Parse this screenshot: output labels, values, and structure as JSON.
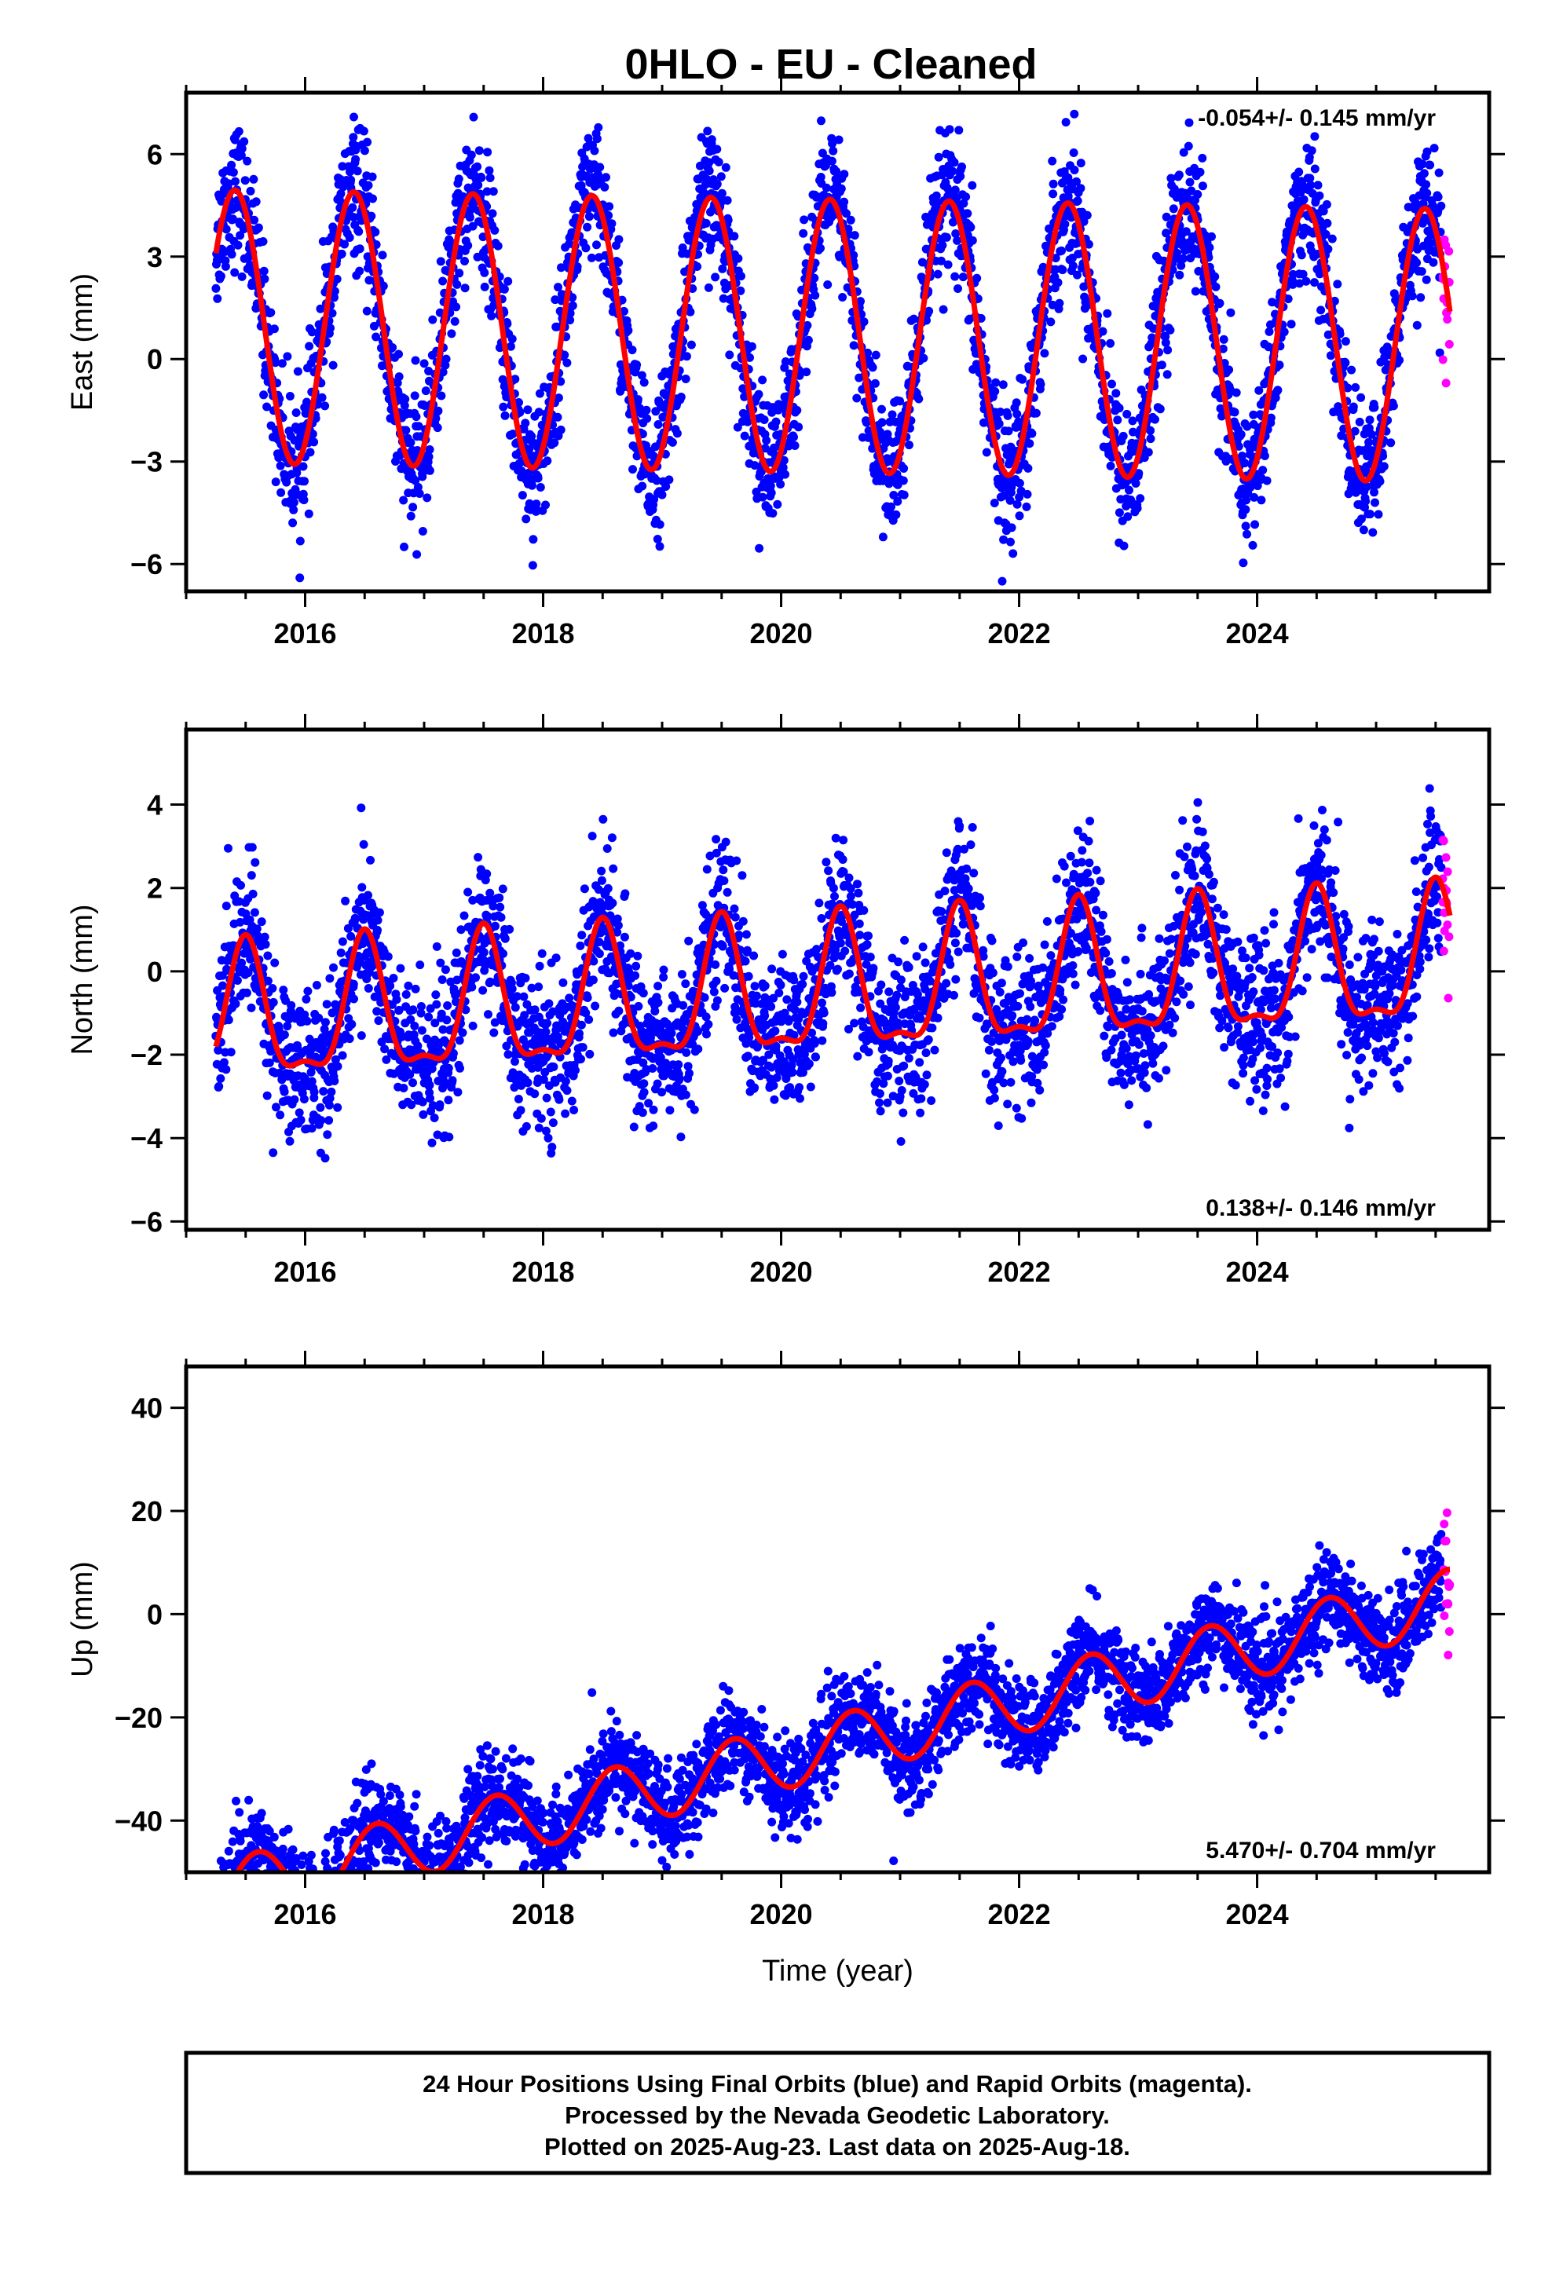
{
  "title": "0HLO  - EU - Cleaned",
  "footer": {
    "lines": [
      "24 Hour Positions Using Final Orbits (blue) and Rapid Orbits (magenta).",
      "Processed by the Nevada Geodetic Laboratory.",
      "Plotted on 2025-Aug-23. Last data on 2025-Aug-18."
    ]
  },
  "colors": {
    "final": "#0000ff",
    "rapid": "#ff00ff",
    "model": "#ff0000"
  },
  "chart_data": [
    {
      "type": "scatter",
      "ylabel": "East (mm)",
      "xlabel": "",
      "rate": "-0.054+/- 0.145 mm/yr",
      "rate_position": "top-right",
      "xlim": [
        2015.0,
        2025.95
      ],
      "ylim": [
        -6.8,
        7.8
      ],
      "xticks": [
        2016,
        2018,
        2020,
        2022,
        2024
      ],
      "xtick_labels": [
        "2016",
        "2018",
        "2020",
        "2022",
        "2024"
      ],
      "yticks": [
        -6,
        -3,
        0,
        3,
        6
      ],
      "ytick_labels": [
        "−6",
        "−3",
        "0",
        "3",
        "6"
      ],
      "data_range": [
        2015.25,
        2025.55
      ],
      "rapid_range": [
        2025.56,
        2025.62
      ],
      "model": {
        "offset": 0.7,
        "trend": -0.054,
        "annual_amp": 4.0,
        "annual_phase": 2015.41,
        "semi_amp": 0.0,
        "semi_phase": 2015.2,
        "noise": 1.0
      }
    },
    {
      "type": "scatter",
      "ylabel": "North (mm)",
      "xlabel": "",
      "rate": "0.138+/- 0.146 mm/yr",
      "rate_position": "bottom-right",
      "xlim": [
        2015.0,
        2025.95
      ],
      "ylim": [
        -6.2,
        5.8
      ],
      "xticks": [
        2016,
        2018,
        2020,
        2022,
        2024
      ],
      "xtick_labels": [
        "2016",
        "2018",
        "2020",
        "2022",
        "2024"
      ],
      "yticks": [
        -6,
        -4,
        -2,
        0,
        2,
        4
      ],
      "ytick_labels": [
        "−6",
        "−4",
        "−2",
        "0",
        "2",
        "4"
      ],
      "data_range": [
        2015.25,
        2025.55
      ],
      "rapid_range": [
        2025.56,
        2025.62
      ],
      "model": {
        "offset": -0.6,
        "trend": 0.138,
        "annual_amp": 1.55,
        "annual_phase": 2015.5,
        "semi_amp": 0.55,
        "semi_phase": 2015.5,
        "noise": 0.9
      }
    },
    {
      "type": "scatter",
      "ylabel": "Up (mm)",
      "xlabel": "Time (year)",
      "rate": "5.470+/- 0.704 mm/yr",
      "rate_position": "bottom-right",
      "xlim": [
        2015.0,
        2025.95
      ],
      "ylim": [
        -50,
        48
      ],
      "xticks": [
        2016,
        2018,
        2020,
        2022,
        2024
      ],
      "xtick_labels": [
        "2016",
        "2018",
        "2020",
        "2022",
        "2024"
      ],
      "yticks": [
        -40,
        -20,
        0,
        20,
        40
      ],
      "ytick_labels": [
        "−40",
        "−20",
        "0",
        "20",
        "40"
      ],
      "data_range": [
        2015.25,
        2025.55
      ],
      "rapid_range": [
        2025.56,
        2025.62
      ],
      "model": {
        "offset": -28.0,
        "trend": 5.47,
        "annual_amp": 6.0,
        "annual_phase": 2015.6,
        "semi_amp": 0.0,
        "semi_phase": 2015.6,
        "noise": 4.5
      }
    }
  ]
}
